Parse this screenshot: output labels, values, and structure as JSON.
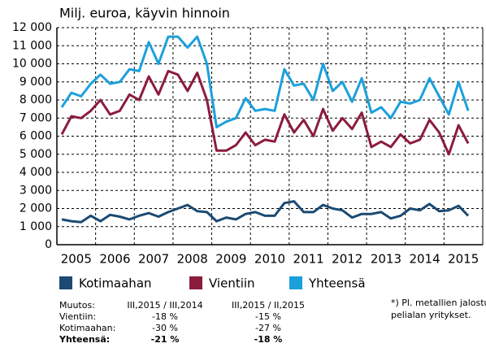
{
  "chart_data": {
    "type": "line",
    "title": "Milj. euroa, käyvin hinnoin",
    "categories": [
      "2005",
      null,
      null,
      null,
      "2006",
      null,
      null,
      null,
      "2007",
      null,
      null,
      null,
      "2008",
      null,
      null,
      null,
      "2009",
      null,
      null,
      null,
      "2010",
      null,
      null,
      null,
      "2011",
      null,
      null,
      null,
      "2012",
      null,
      null,
      null,
      "2013",
      null,
      null,
      null,
      "2014",
      null,
      null,
      null,
      "2015",
      null,
      null
    ],
    "series": [
      {
        "name": "Kotimaahan",
        "color": "#1b4a73",
        "values": [
          1400,
          1300,
          1250,
          1600,
          1300,
          1650,
          1550,
          1400,
          1600,
          1750,
          1550,
          1800,
          2000,
          2200,
          1850,
          1800,
          1300,
          1500,
          1400,
          1700,
          1800,
          1600,
          1600,
          2300,
          2400,
          1800,
          1800,
          2200,
          2000,
          1900,
          1500,
          1700,
          1700,
          1800,
          1450,
          1600,
          2000,
          1900,
          2250,
          1850,
          1900,
          2150,
          1600
        ]
      },
      {
        "name": "Vientiin",
        "color": "#8c1c3c",
        "values": [
          6100,
          7100,
          7000,
          7400,
          8000,
          7200,
          7400,
          8300,
          8000,
          9300,
          8300,
          9600,
          9400,
          8500,
          9500,
          8000,
          5200,
          5200,
          5500,
          6200,
          5500,
          5800,
          5700,
          7200,
          6200,
          6900,
          6000,
          7500,
          6300,
          7000,
          6400,
          7300,
          5400,
          5700,
          5400,
          6100,
          5600,
          5800,
          6900,
          6200,
          5000,
          6600,
          5600
        ]
      },
      {
        "name": "Yhteensä",
        "color": "#1ca0dc",
        "values": [
          7600,
          8400,
          8200,
          8900,
          9400,
          8900,
          9000,
          9700,
          9600,
          11200,
          10000,
          11500,
          11500,
          10900,
          11500,
          10000,
          6500,
          6800,
          7000,
          8100,
          7400,
          7500,
          7400,
          9700,
          8800,
          8900,
          8000,
          10000,
          8500,
          9000,
          7900,
          9200,
          7300,
          7600,
          7000,
          7900,
          7800,
          8000,
          9200,
          8200,
          7200,
          9000,
          7400
        ]
      }
    ],
    "ylim": [
      0,
      12000
    ],
    "yticks": [
      0,
      {
        "value": 1000,
        "label": "1 000"
      },
      {
        "value": 2000,
        "label": "2 000"
      },
      {
        "value": 3000,
        "label": "3 000"
      },
      {
        "value": 4000,
        "label": "4 000"
      },
      {
        "value": 5000,
        "label": "5 000"
      },
      {
        "value": 6000,
        "label": "6 000"
      },
      {
        "value": 7000,
        "label": "7 000"
      },
      {
        "value": 8000,
        "label": "8 000"
      },
      {
        "value": 9000,
        "label": "9 000"
      },
      {
        "value": 10000,
        "label": "10 000"
      },
      {
        "value": 11000,
        "label": "11 000"
      },
      {
        "value": 12000,
        "label": "12 000"
      }
    ],
    "grid": true
  },
  "table": {
    "header": [
      "Muutos:",
      "III,2015 / III,2014",
      "III,2015 / II,2015"
    ],
    "rows": [
      [
        "Vientiin:",
        "-18 %",
        "-15 %"
      ],
      [
        "Kotimaahan:",
        "-30 %",
        "-27 %"
      ],
      [
        "Yhteensä:",
        "-21 %",
        "-18 %"
      ]
    ]
  },
  "footnote": [
    "*) Pl. metallien jalostu",
    "pelialan yritykset."
  ]
}
